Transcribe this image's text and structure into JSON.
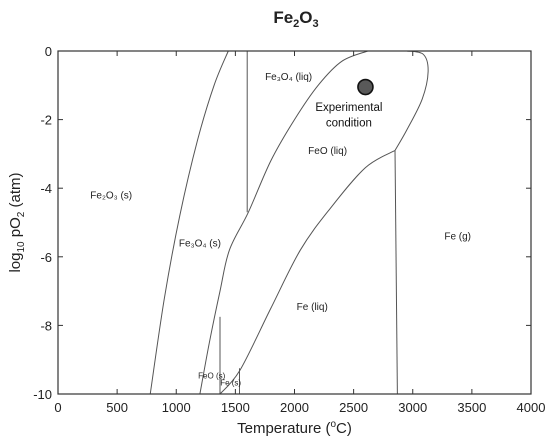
{
  "chart_data": {
    "type": "phase-diagram",
    "title": {
      "base": "Fe",
      "sub1": "2",
      "mid": "O",
      "sub2": "3"
    },
    "xlabel": {
      "pre": "Temperature (",
      "sup": "o",
      "post": "C)"
    },
    "ylabel": {
      "pre": "log",
      "sub1": "10",
      "mid": " pO",
      "sub2": "2",
      "post": " (atm)"
    },
    "xlim": [
      0,
      4000
    ],
    "ylim": [
      -10,
      0
    ],
    "xticks": [
      0,
      500,
      1000,
      1500,
      2000,
      2500,
      3000,
      3500,
      4000
    ],
    "yticks": [
      0,
      -2,
      -4,
      -6,
      -8,
      -10
    ],
    "ytick_labels": [
      "0",
      "-2",
      "-4",
      "-6",
      "-8",
      "-10"
    ],
    "grid": false,
    "boundaries": [
      {
        "name": "Fe2O3-Fe3O4",
        "points": [
          [
            780,
            -10
          ],
          [
            900,
            -7.2
          ],
          [
            1030,
            -4.8
          ],
          [
            1180,
            -2.6
          ],
          [
            1320,
            -1.0
          ],
          [
            1440,
            0
          ]
        ]
      },
      {
        "name": "Fe3O4-FeO",
        "points": [
          [
            1200,
            -10
          ],
          [
            1280,
            -8.5
          ],
          [
            1370,
            -7.0
          ],
          [
            1450,
            -5.8
          ],
          [
            1610,
            -4.7
          ],
          [
            1800,
            -3.2
          ],
          [
            2000,
            -2.0
          ],
          [
            2200,
            -1.0
          ],
          [
            2400,
            -0.3
          ],
          [
            2620,
            0
          ]
        ]
      },
      {
        "name": "FeO-Fe",
        "points": [
          [
            1370,
            -10
          ],
          [
            1540,
            -9.3
          ],
          [
            1800,
            -7.5
          ],
          [
            2050,
            -5.8
          ],
          [
            2300,
            -4.6
          ],
          [
            2600,
            -3.4
          ],
          [
            2850,
            -2.9
          ]
        ]
      },
      {
        "name": "FeO(liq)-gas",
        "points": [
          [
            2850,
            -2.9
          ],
          [
            2950,
            -2.3
          ],
          [
            3080,
            -1.4
          ],
          [
            3130,
            -0.6
          ],
          [
            3090,
            -0.1
          ],
          [
            2950,
            0
          ]
        ]
      },
      {
        "name": "Fe(liq)-Fe(g)",
        "points": [
          [
            2850,
            -2.9
          ],
          [
            2870,
            -10
          ]
        ]
      },
      {
        "name": "Fe3O4 melting",
        "points": [
          [
            1600,
            0
          ],
          [
            1600,
            -4.7
          ]
        ]
      },
      {
        "name": "FeO melting",
        "points": [
          [
            1370,
            -7.75
          ],
          [
            1370,
            -10
          ]
        ]
      },
      {
        "name": "Fe melting",
        "points": [
          [
            1535,
            -9.25
          ],
          [
            1535,
            -10
          ]
        ]
      }
    ],
    "regions": [
      {
        "label": "Fe₂O₃ (s)",
        "x": 450,
        "y": -4.3,
        "size": "normal"
      },
      {
        "label": "Fe₃O₄ (s)",
        "x": 1200,
        "y": -5.7,
        "size": "normal"
      },
      {
        "label": "Fe₃O₄ (liq)",
        "x": 1950,
        "y": -0.85,
        "size": "normal"
      },
      {
        "label": "FeO (liq)",
        "x": 2280,
        "y": -3.0,
        "size": "normal"
      },
      {
        "label": "Fe (liq)",
        "x": 2150,
        "y": -7.55,
        "size": "normal"
      },
      {
        "label": "Fe (g)",
        "x": 3380,
        "y": -5.5,
        "size": "normal"
      },
      {
        "label": "FeO (s)",
        "x": 1300,
        "y": -9.55,
        "size": "small"
      },
      {
        "label": "Fe (s)",
        "x": 1460,
        "y": -9.75,
        "size": "small"
      }
    ],
    "marker": {
      "x": 2600,
      "y": -1.05,
      "color": "#595959"
    },
    "annotation": {
      "lines": [
        "Experimental",
        "condition"
      ],
      "x": 2460,
      "y1": -1.75,
      "y2": -2.2
    }
  }
}
